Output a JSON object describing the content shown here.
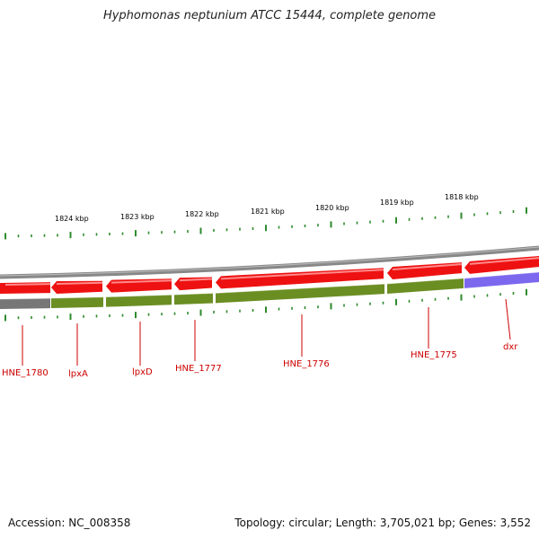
{
  "title": "Hyphomonas neptunium ATCC 15444, complete genome",
  "footer": {
    "accession": "Accession: NC_008358",
    "summary": "Topology: circular; Length: 3,705,021 bp; Genes: 3,552"
  },
  "colors": {
    "cds_forward": "#ee1111",
    "cds_reverse": "#ee1111",
    "backbone": "#888888",
    "gene_track_default": "#6b8e23",
    "gene_track_gray": "#777777",
    "gene_track_blue": "#7b68ee",
    "tick": "#2e8b2e",
    "gene_label": "#cc0000"
  },
  "kbp_labels": [
    "1824 kbp",
    "1823 kbp",
    "1822 kbp",
    "1821 kbp",
    "1820 kbp",
    "1819 kbp",
    "1818 kbp"
  ],
  "genes": [
    {
      "label": "HNE_1780",
      "strand": "reverse",
      "color_key": "gene_track_gray"
    },
    {
      "label": "lpxA",
      "strand": "reverse",
      "color_key": "gene_track_default"
    },
    {
      "label": "lpxD",
      "strand": "reverse",
      "color_key": "gene_track_default"
    },
    {
      "label": "HNE_1777",
      "strand": "reverse",
      "color_key": "gene_track_default"
    },
    {
      "label": "HNE_1776",
      "strand": "reverse",
      "color_key": "gene_track_default"
    },
    {
      "label": "HNE_1775",
      "strand": "reverse",
      "color_key": "gene_track_default"
    },
    {
      "label": "dxr",
      "strand": "reverse",
      "color_key": "gene_track_blue"
    }
  ]
}
